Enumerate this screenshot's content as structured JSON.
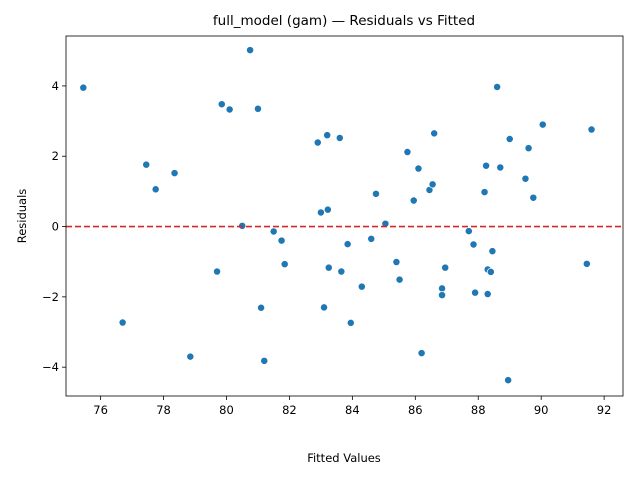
{
  "chart_data": {
    "type": "scatter",
    "title": "full_model (gam) — Residuals vs Fitted",
    "xlabel": "Fitted Values",
    "ylabel": "Residuals",
    "xlim": [
      74.9,
      92.6
    ],
    "ylim": [
      -4.82,
      5.42
    ],
    "xticks": [
      76,
      78,
      80,
      82,
      84,
      86,
      88,
      90,
      92
    ],
    "yticks": [
      -4,
      -2,
      0,
      2,
      4
    ],
    "grid": false,
    "point_color": "#1f77b4",
    "reference_line": {
      "y": 0,
      "color": "#d62728",
      "style": "dashed"
    },
    "points": [
      {
        "x": 75.45,
        "y": 3.95
      },
      {
        "x": 76.7,
        "y": -2.73
      },
      {
        "x": 77.45,
        "y": 1.76
      },
      {
        "x": 77.75,
        "y": 1.06
      },
      {
        "x": 78.35,
        "y": 1.52
      },
      {
        "x": 78.85,
        "y": -3.7
      },
      {
        "x": 79.7,
        "y": -1.28
      },
      {
        "x": 79.85,
        "y": 3.48
      },
      {
        "x": 80.1,
        "y": 3.33
      },
      {
        "x": 80.5,
        "y": 0.02
      },
      {
        "x": 80.75,
        "y": 5.02
      },
      {
        "x": 81.0,
        "y": 3.35
      },
      {
        "x": 81.1,
        "y": -2.31
      },
      {
        "x": 81.2,
        "y": -3.82
      },
      {
        "x": 81.5,
        "y": -0.14
      },
      {
        "x": 81.75,
        "y": -0.4
      },
      {
        "x": 81.85,
        "y": -1.07
      },
      {
        "x": 82.9,
        "y": 2.39
      },
      {
        "x": 83.0,
        "y": 0.4
      },
      {
        "x": 83.1,
        "y": -2.3
      },
      {
        "x": 83.2,
        "y": 2.6
      },
      {
        "x": 83.22,
        "y": 0.48
      },
      {
        "x": 83.25,
        "y": -1.17
      },
      {
        "x": 83.6,
        "y": 2.52
      },
      {
        "x": 83.65,
        "y": -1.28
      },
      {
        "x": 83.85,
        "y": -0.5
      },
      {
        "x": 83.95,
        "y": -2.74
      },
      {
        "x": 84.3,
        "y": -1.71
      },
      {
        "x": 84.6,
        "y": -0.35
      },
      {
        "x": 84.75,
        "y": 0.93
      },
      {
        "x": 85.05,
        "y": 0.08
      },
      {
        "x": 85.4,
        "y": -1.01
      },
      {
        "x": 85.5,
        "y": -1.51
      },
      {
        "x": 85.75,
        "y": 2.12
      },
      {
        "x": 85.95,
        "y": 0.74
      },
      {
        "x": 86.1,
        "y": 1.65
      },
      {
        "x": 86.2,
        "y": -3.6
      },
      {
        "x": 86.45,
        "y": 1.04
      },
      {
        "x": 86.55,
        "y": 1.2
      },
      {
        "x": 86.6,
        "y": 2.65
      },
      {
        "x": 86.85,
        "y": -1.76
      },
      {
        "x": 86.85,
        "y": -1.95
      },
      {
        "x": 86.95,
        "y": -1.17
      },
      {
        "x": 87.7,
        "y": -0.13
      },
      {
        "x": 87.85,
        "y": -0.51
      },
      {
        "x": 87.9,
        "y": -1.88
      },
      {
        "x": 88.2,
        "y": 0.98
      },
      {
        "x": 88.25,
        "y": 1.73
      },
      {
        "x": 88.3,
        "y": -1.22
      },
      {
        "x": 88.3,
        "y": -1.92
      },
      {
        "x": 88.4,
        "y": -1.29
      },
      {
        "x": 88.45,
        "y": -0.7
      },
      {
        "x": 88.6,
        "y": 3.97
      },
      {
        "x": 88.7,
        "y": 1.68
      },
      {
        "x": 88.95,
        "y": -4.37
      },
      {
        "x": 89.0,
        "y": 2.49
      },
      {
        "x": 89.5,
        "y": 1.36
      },
      {
        "x": 89.6,
        "y": 2.23
      },
      {
        "x": 89.75,
        "y": 0.82
      },
      {
        "x": 90.05,
        "y": 2.9
      },
      {
        "x": 91.45,
        "y": -1.06
      },
      {
        "x": 91.6,
        "y": 2.76
      }
    ]
  }
}
